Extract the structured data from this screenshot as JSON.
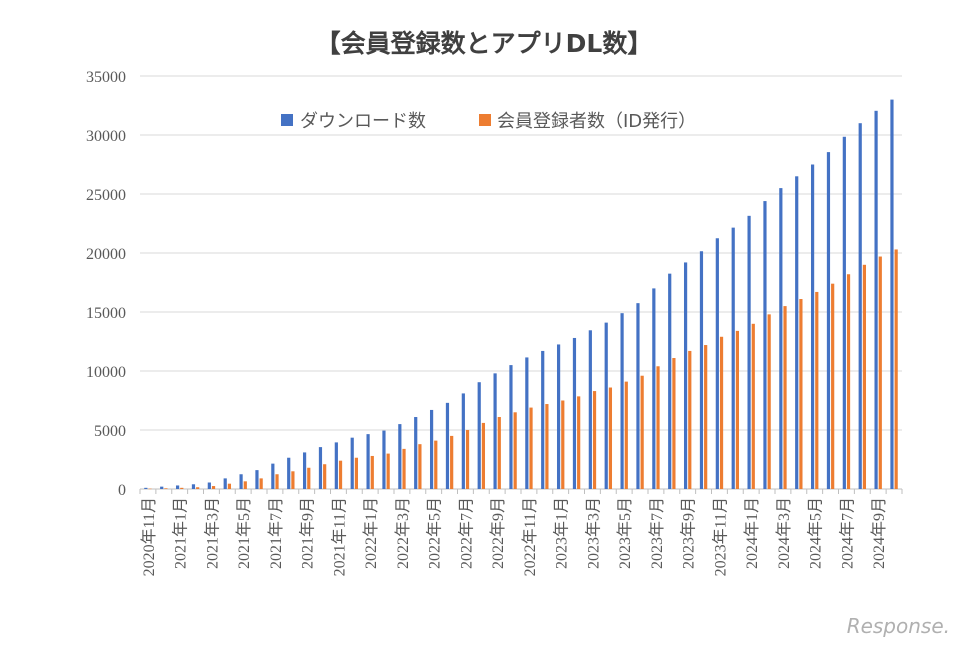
{
  "watermark": "Response.",
  "chart_data": {
    "type": "bar",
    "title": "【会員登録数とアプリDL数】",
    "xlabel": "",
    "ylabel": "",
    "ylim": [
      0,
      35000
    ],
    "yticks": [
      0,
      5000,
      10000,
      15000,
      20000,
      25000,
      30000,
      35000
    ],
    "grid": true,
    "legend_position": "top-center",
    "categories": [
      "2020年11月",
      "2020年12月",
      "2021年1月",
      "2021年2月",
      "2021年3月",
      "2021年4月",
      "2021年5月",
      "2021年6月",
      "2021年7月",
      "2021年8月",
      "2021年9月",
      "2021年10月",
      "2021年11月",
      "2021年12月",
      "2022年1月",
      "2022年2月",
      "2022年3月",
      "2022年4月",
      "2022年5月",
      "2022年6月",
      "2022年7月",
      "2022年8月",
      "2022年9月",
      "2022年10月",
      "2022年11月",
      "2022年12月",
      "2023年1月",
      "2023年2月",
      "2023年3月",
      "2023年4月",
      "2023年5月",
      "2023年6月",
      "2023年7月",
      "2023年8月",
      "2023年9月",
      "2023年10月",
      "2023年11月",
      "2023年12月",
      "2024年1月",
      "2024年2月",
      "2024年3月",
      "2024年4月",
      "2024年5月",
      "2024年6月",
      "2024年7月",
      "2024年8月",
      "2024年9月",
      "2024年10月"
    ],
    "tick_labels": [
      "2020年11月",
      "2021年1月",
      "2021年3月",
      "2021年5月",
      "2021年7月",
      "2021年9月",
      "2021年11月",
      "2022年1月",
      "2022年3月",
      "2022年5月",
      "2022年7月",
      "2022年9月",
      "2022年11月",
      "2023年1月",
      "2023年3月",
      "2023年5月",
      "2023年7月",
      "2023年9月",
      "2023年11月",
      "2024年1月",
      "2024年3月",
      "2024年5月",
      "2024年7月",
      "2024年9月"
    ],
    "series": [
      {
        "name": "ダウンロード数",
        "color": "#4472c4",
        "values": [
          100,
          200,
          300,
          400,
          550,
          900,
          1250,
          1600,
          2150,
          2650,
          3100,
          3550,
          3950,
          4350,
          4650,
          4950,
          5500,
          6100,
          6700,
          7300,
          8100,
          9050,
          9800,
          10500,
          11150,
          11700,
          12250,
          12800,
          13450,
          14100,
          14900,
          15750,
          17000,
          18250,
          19200,
          20150,
          21250,
          22150,
          23150,
          24400,
          25500,
          26500,
          27500,
          28550,
          29850,
          31000,
          32050,
          33000
        ]
      },
      {
        "name": "会員登録者数（ID発行）",
        "color": "#ed7d31",
        "values": [
          30,
          60,
          100,
          150,
          250,
          450,
          650,
          900,
          1250,
          1500,
          1800,
          2100,
          2400,
          2650,
          2800,
          3000,
          3400,
          3800,
          4100,
          4500,
          5000,
          5600,
          6100,
          6500,
          6900,
          7200,
          7500,
          7850,
          8300,
          8600,
          9100,
          9600,
          10400,
          11100,
          11700,
          12200,
          12900,
          13400,
          14000,
          14800,
          15500,
          16100,
          16700,
          17400,
          18200,
          19000,
          19700,
          20300
        ]
      }
    ]
  }
}
